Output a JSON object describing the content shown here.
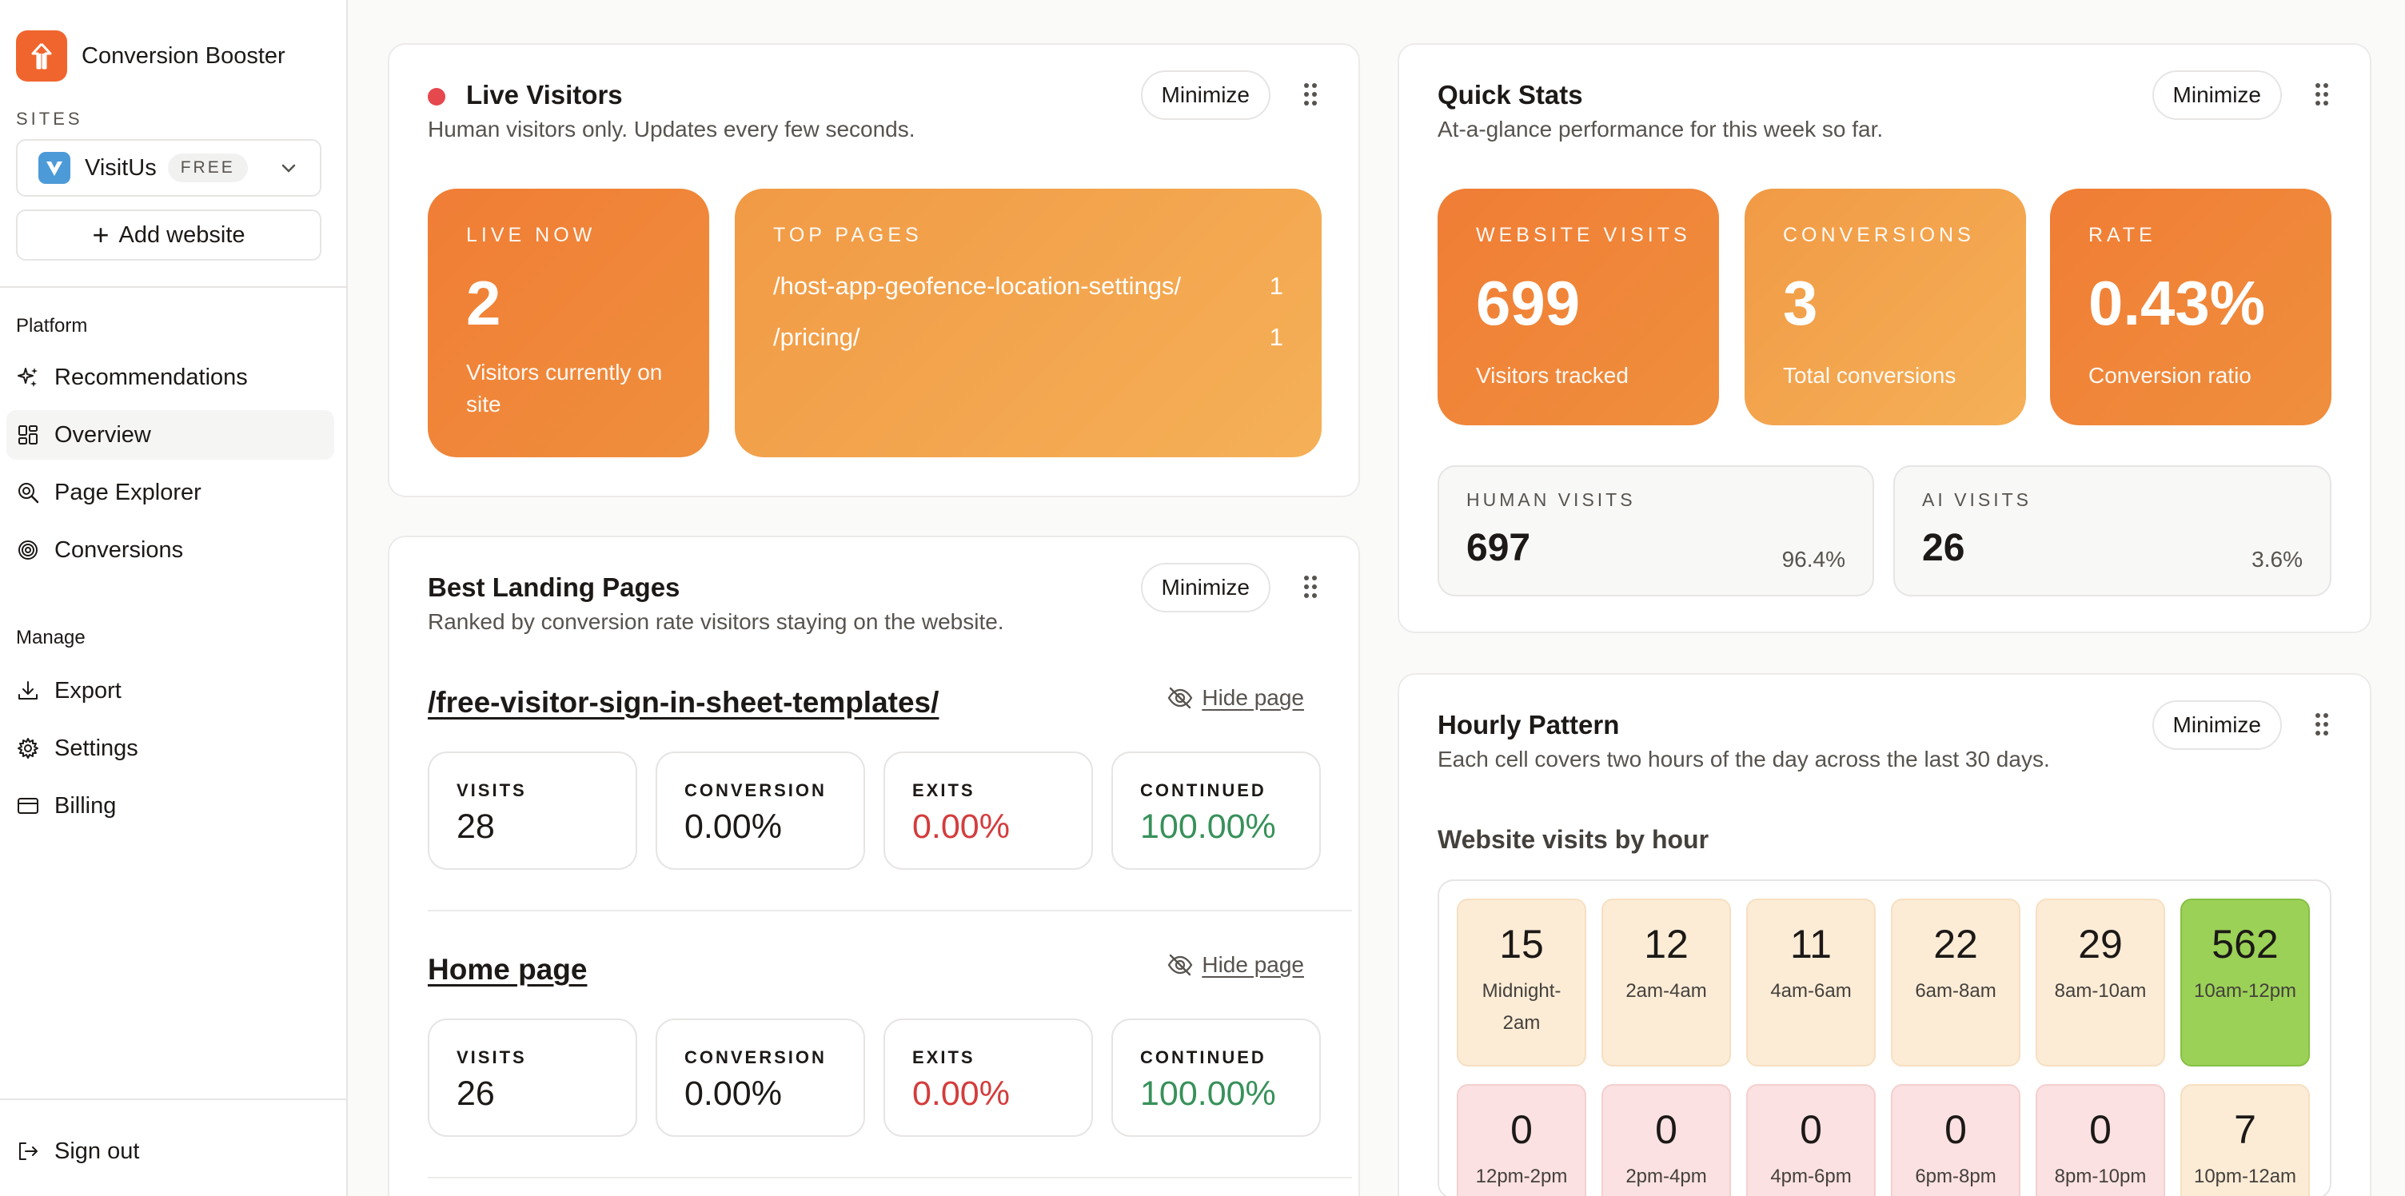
{
  "app": {
    "name": "Conversion Booster"
  },
  "sidebar": {
    "sites_label": "SITES",
    "site": {
      "name": "VisitUs",
      "plan_badge": "FREE"
    },
    "add_website": "Add website",
    "platform_label": "Platform",
    "platform_items": [
      {
        "label": "Recommendations",
        "icon": "sparkles-icon"
      },
      {
        "label": "Overview",
        "icon": "dashboard-icon",
        "active": true
      },
      {
        "label": "Page Explorer",
        "icon": "search-page-icon"
      },
      {
        "label": "Conversions",
        "icon": "target-icon"
      }
    ],
    "manage_label": "Manage",
    "manage_items": [
      {
        "label": "Export",
        "icon": "download-icon"
      },
      {
        "label": "Settings",
        "icon": "gear-icon"
      },
      {
        "label": "Billing",
        "icon": "card-icon"
      }
    ],
    "sign_out": "Sign out"
  },
  "common": {
    "minimize": "Minimize",
    "hide_page": "Hide page"
  },
  "live_visitors": {
    "title": "Live Visitors",
    "subtitle": "Human visitors only. Updates every few seconds.",
    "status_color": "#e5484d",
    "live_now": {
      "label": "LIVE NOW",
      "value": "2",
      "caption": "Visitors currently on site"
    },
    "top_pages": {
      "label": "TOP PAGES",
      "items": [
        {
          "path": "/host-app-geofence-location-settings/",
          "count": "1"
        },
        {
          "path": "/pricing/",
          "count": "1"
        }
      ]
    }
  },
  "quick_stats": {
    "title": "Quick Stats",
    "subtitle": "At-a-glance performance for this week so far.",
    "tiles": [
      {
        "label": "WEBSITE VISITS",
        "value": "699",
        "caption": "Visitors tracked"
      },
      {
        "label": "CONVERSIONS",
        "value": "3",
        "caption": "Total conversions"
      },
      {
        "label": "RATE",
        "value": "0.43%",
        "caption": "Conversion ratio"
      }
    ],
    "boxes": [
      {
        "label": "HUMAN VISITS",
        "value": "697",
        "pct": "96.4%"
      },
      {
        "label": "AI VISITS",
        "value": "26",
        "pct": "3.6%"
      }
    ]
  },
  "best_landing": {
    "title": "Best Landing Pages",
    "subtitle": "Ranked by conversion rate visitors staying on the website.",
    "metric_labels": {
      "visits": "VISITS",
      "conversion": "CONVERSION",
      "exits": "EXITS",
      "continued": "CONTINUED"
    },
    "pages": [
      {
        "title": "/free-visitor-sign-in-sheet-templates/",
        "visits": "28",
        "conversion": "0.00%",
        "exits": "0.00%",
        "continued": "100.00%"
      },
      {
        "title": "Home page",
        "visits": "26",
        "conversion": "0.00%",
        "exits": "0.00%",
        "continued": "100.00%"
      }
    ]
  },
  "hourly": {
    "title": "Hourly Pattern",
    "subtitle": "Each cell covers two hours of the day across the last 30 days.",
    "heading": "Website visits by hour",
    "colors": {
      "low": "#fcecd6",
      "high": "#9bd157",
      "zero": "#fbe1e1"
    },
    "cells": [
      {
        "value": "15",
        "label": "Midnight-2am",
        "level": "low"
      },
      {
        "value": "12",
        "label": "2am-4am",
        "level": "low"
      },
      {
        "value": "11",
        "label": "4am-6am",
        "level": "low"
      },
      {
        "value": "22",
        "label": "6am-8am",
        "level": "low"
      },
      {
        "value": "29",
        "label": "8am-10am",
        "level": "low"
      },
      {
        "value": "562",
        "label": "10am-12pm",
        "level": "high"
      },
      {
        "value": "0",
        "label": "12pm-2pm",
        "level": "zero"
      },
      {
        "value": "0",
        "label": "2pm-4pm",
        "level": "zero"
      },
      {
        "value": "0",
        "label": "4pm-6pm",
        "level": "zero"
      },
      {
        "value": "0",
        "label": "6pm-8pm",
        "level": "zero"
      },
      {
        "value": "0",
        "label": "8pm-10pm",
        "level": "zero"
      },
      {
        "value": "7",
        "label": "10pm-12am",
        "level": "low"
      }
    ]
  }
}
